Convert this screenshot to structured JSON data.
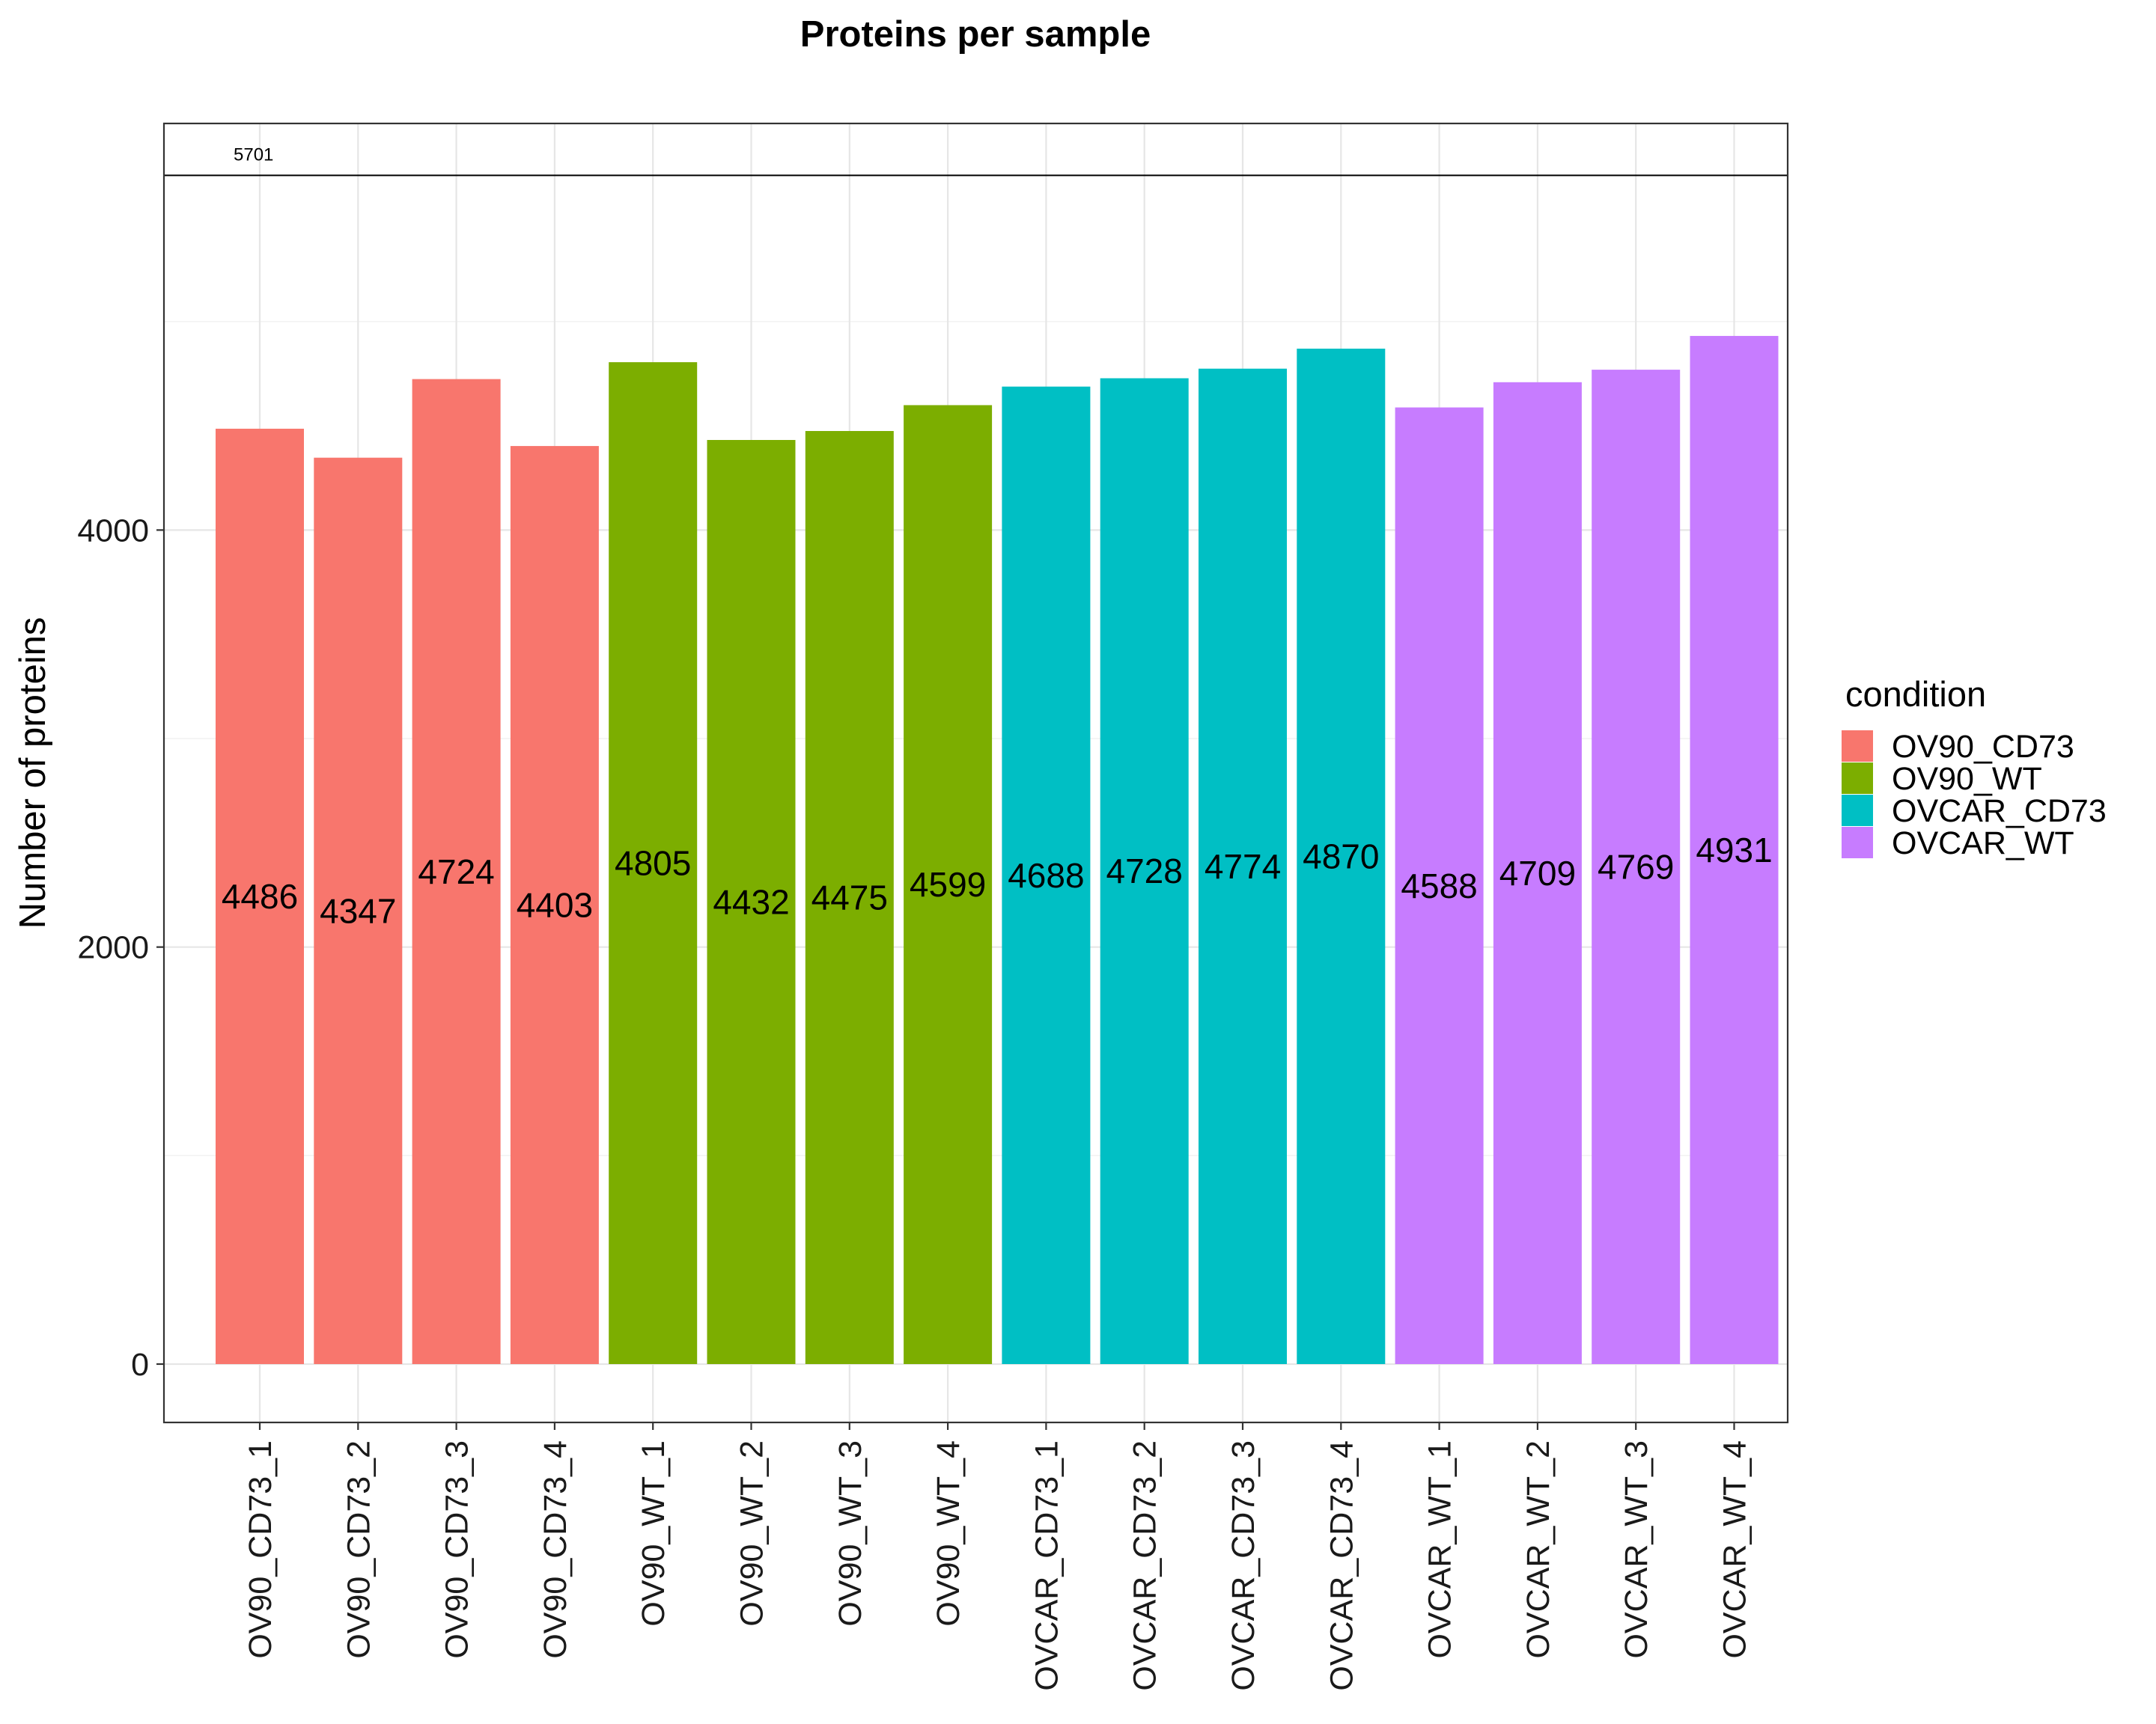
{
  "chart_data": {
    "type": "bar",
    "title": "Proteins per sample",
    "xlabel": "",
    "ylabel": "Number of proteins",
    "ylim": [
      -280,
      5950
    ],
    "yticks": [
      0,
      2000,
      4000
    ],
    "grid": true,
    "legend_position": "right",
    "legend_title": "condition",
    "reference_line": {
      "value": 5701,
      "label": "5701"
    },
    "groups": [
      {
        "name": "OV90_CD73",
        "color": "#F8766D"
      },
      {
        "name": "OV90_WT",
        "color": "#7CAE00"
      },
      {
        "name": "OVCAR_CD73",
        "color": "#00BFC4"
      },
      {
        "name": "OVCAR_WT",
        "color": "#C77CFF"
      }
    ],
    "categories": [
      "OV90_CD73_1",
      "OV90_CD73_2",
      "OV90_CD73_3",
      "OV90_CD73_4",
      "OV90_WT_1",
      "OV90_WT_2",
      "OV90_WT_3",
      "OV90_WT_4",
      "OVCAR_CD73_1",
      "OVCAR_CD73_2",
      "OVCAR_CD73_3",
      "OVCAR_CD73_4",
      "OVCAR_WT_1",
      "OVCAR_WT_2",
      "OVCAR_WT_3",
      "OVCAR_WT_4"
    ],
    "condition": [
      "OV90_CD73",
      "OV90_CD73",
      "OV90_CD73",
      "OV90_CD73",
      "OV90_WT",
      "OV90_WT",
      "OV90_WT",
      "OV90_WT",
      "OVCAR_CD73",
      "OVCAR_CD73",
      "OVCAR_CD73",
      "OVCAR_CD73",
      "OVCAR_WT",
      "OVCAR_WT",
      "OVCAR_WT",
      "OVCAR_WT"
    ],
    "values": [
      4486,
      4347,
      4724,
      4403,
      4805,
      4432,
      4475,
      4599,
      4688,
      4728,
      4774,
      4870,
      4588,
      4709,
      4769,
      4931
    ]
  }
}
